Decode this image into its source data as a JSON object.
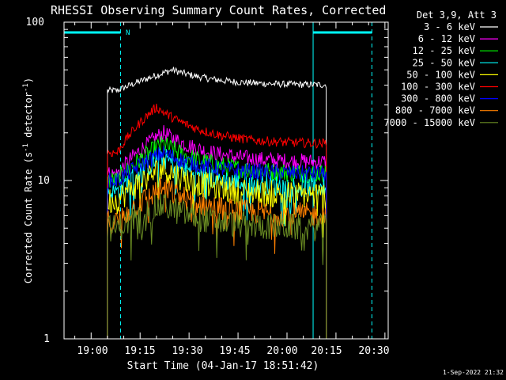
{
  "chart_data": {
    "type": "line",
    "title": "RHESSI Observing Summary Count Rates, Corrected",
    "xlabel": "Start Time (04-Jan-17 18:51:42)",
    "ylabel_main": "Corrected Count Rate (s",
    "ylabel_sup1": "-1",
    "ylabel_mid": " detector",
    "ylabel_sup2": "-1",
    "ylabel_end": ")",
    "yscale": "log",
    "ylim": [
      1,
      100
    ],
    "xlim_minutes_after_1900": [
      -8.3,
      91
    ],
    "x_ticks": [
      "19:00",
      "19:15",
      "19:30",
      "19:45",
      "20:00",
      "20:15",
      "20:30"
    ],
    "y_ticks": [
      "1",
      "10",
      "100"
    ],
    "legend_header": "Det 3,9, Att 3",
    "legend_placement": "top-right outside plot",
    "timestamp": "1-Sep-2022 21:32",
    "annotation_N": "N",
    "data_start_time": "19:05",
    "data_end_time": "20:12",
    "night_periods": [
      {
        "start": "18:51",
        "end": "19:09",
        "label": "N"
      },
      {
        "start": "20:08",
        "end": "20:26",
        "label": ""
      }
    ],
    "series": [
      {
        "name": "3 - 6 keV",
        "color": "#ffffff",
        "base_pre": 37,
        "peak": 50,
        "peak_time": "19:25",
        "plateau": 40,
        "noise": 0.05
      },
      {
        "name": "6 - 12 keV",
        "color": "#ff00ff",
        "base_pre": 11,
        "peak": 20,
        "peak_time": "19:22",
        "plateau": 13,
        "noise": 0.12
      },
      {
        "name": "12 - 25 keV",
        "color": "#00ff00",
        "base_pre": 10,
        "peak": 17,
        "peak_time": "19:22",
        "plateau": 11,
        "noise": 0.14
      },
      {
        "name": "25 - 50 keV",
        "color": "#00ffff",
        "base_pre": 8.5,
        "peak": 14,
        "peak_time": "19:22",
        "plateau": 9,
        "noise": 0.16
      },
      {
        "name": "50 - 100 keV",
        "color": "#ffff00",
        "base_pre": 7.5,
        "peak": 12,
        "peak_time": "19:22",
        "plateau": 8,
        "noise": 0.2
      },
      {
        "name": "100 - 300 keV",
        "color": "#ff0000",
        "base_pre": 15,
        "peak": 29,
        "peak_time": "19:20",
        "plateau": 17,
        "noise": 0.07
      },
      {
        "name": "300 - 800 keV",
        "color": "#0000ff",
        "base_pre": 10,
        "peak": 15,
        "peak_time": "19:22",
        "plateau": 11,
        "noise": 0.12
      },
      {
        "name": "800 - 7000 keV",
        "color": "#ff8000",
        "base_pre": 5.5,
        "peak": 9,
        "peak_time": "19:22",
        "plateau": 6,
        "noise": 0.18
      },
      {
        "name": "7000 - 15000 keV",
        "color": "#6b8e23",
        "base_pre": 5,
        "peak": 7,
        "peak_time": "19:22",
        "plateau": 5,
        "noise": 0.2
      }
    ]
  }
}
